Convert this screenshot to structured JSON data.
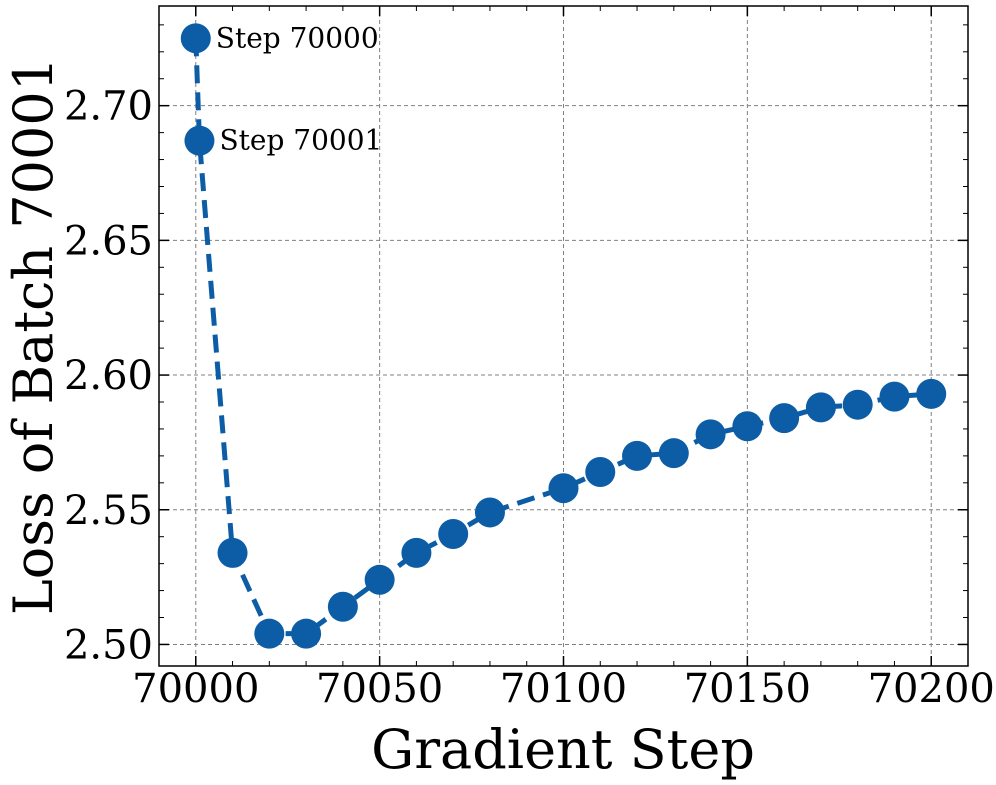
{
  "chart_data": {
    "type": "line",
    "title": "",
    "xlabel": "Gradient Step",
    "ylabel": "Loss of Batch 70001",
    "xlim": [
      69990,
      70210
    ],
    "ylim": [
      2.492,
      2.737
    ],
    "grid": true,
    "line_style": "dashed",
    "marker": "circle",
    "color": "#0C5DA5",
    "x_ticks": [
      70000,
      70050,
      70100,
      70150,
      70200
    ],
    "x_tick_labels": [
      "70000",
      "70050",
      "70100",
      "70150",
      "70200"
    ],
    "y_ticks": [
      2.5,
      2.55,
      2.6,
      2.65,
      2.7
    ],
    "y_tick_labels": [
      "2.50",
      "2.55",
      "2.60",
      "2.65",
      "2.70"
    ],
    "series": [
      {
        "x": [
          70000,
          70001,
          70010,
          70020,
          70030,
          70040,
          70050,
          70060,
          70070,
          70080,
          70100,
          70110,
          70120,
          70130,
          70140,
          70150,
          70160,
          70170,
          70180,
          70190,
          70200
        ],
        "y": [
          2.725,
          2.687,
          2.534,
          2.504,
          2.504,
          2.514,
          2.524,
          2.534,
          2.541,
          2.549,
          2.558,
          2.564,
          2.57,
          2.571,
          2.578,
          2.581,
          2.584,
          2.588,
          2.589,
          2.592,
          2.593
        ]
      }
    ],
    "annotations": [
      {
        "text": "Step 70000",
        "x": 70000,
        "y": 2.725
      },
      {
        "text": "Step 70001",
        "x": 70001,
        "y": 2.687
      }
    ]
  }
}
